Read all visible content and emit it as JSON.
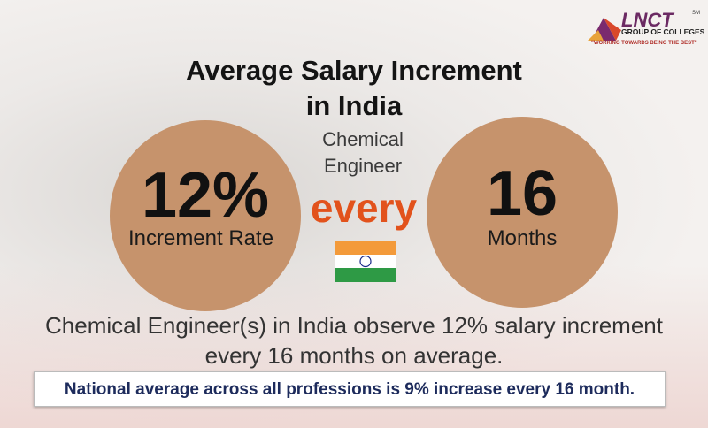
{
  "logo": {
    "brand": "LNCT",
    "mark": "SM",
    "name": "GROUP OF COLLEGES",
    "tagline": "\"WORKING TOWARDS BEING THE BEST\""
  },
  "title": [
    "Average Salary Increment",
    "in India"
  ],
  "profession": [
    "Chemical",
    "Engineer"
  ],
  "rate": {
    "value": "12%",
    "label": "Increment Rate"
  },
  "connector": "every",
  "period": {
    "value": "16",
    "label": "Months"
  },
  "summary": [
    "Chemical Engineer(s) in India observe 12% salary increment",
    "every 16 months on average."
  ],
  "banner": "National average across all professions is 9% increase every 16 month."
}
